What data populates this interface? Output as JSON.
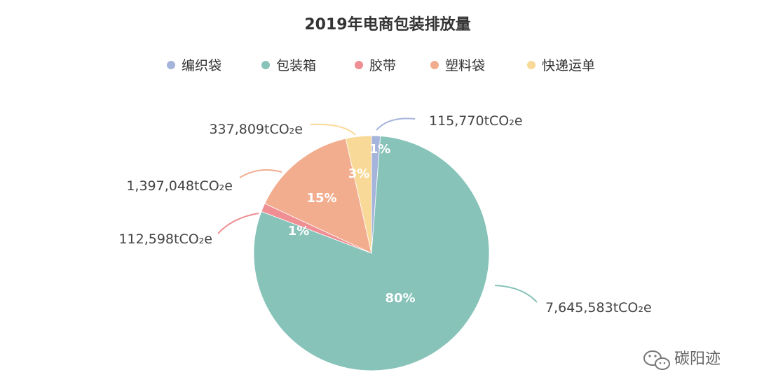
{
  "chart_data": {
    "type": "pie",
    "title": "2019年电商包装排放量",
    "legend_position": "top-center",
    "unit": "tCO₂e",
    "slices": [
      {
        "name": "编织袋",
        "value": 115770,
        "value_label": "115,770tCO₂e",
        "percent_label": "1%",
        "color": "#a5b4db"
      },
      {
        "name": "包装箱",
        "value": 7645583,
        "value_label": "7,645,583tCO₂e",
        "percent_label": "80%",
        "color": "#87c3b9"
      },
      {
        "name": "胶带",
        "value": 112598,
        "value_label": "112,598tCO₂e",
        "percent_label": "1%",
        "color": "#ef8e93"
      },
      {
        "name": "塑料袋",
        "value": 1397048,
        "value_label": "1,397,048tCO₂e",
        "percent_label": "15%",
        "color": "#f2ad8f"
      },
      {
        "name": "快递运单",
        "value": 337809,
        "value_label": "337,809tCO₂e",
        "percent_label": "3%",
        "color": "#f9d997"
      }
    ]
  },
  "watermark": {
    "text": "碳阳迹",
    "icon": "wechat-icon"
  }
}
